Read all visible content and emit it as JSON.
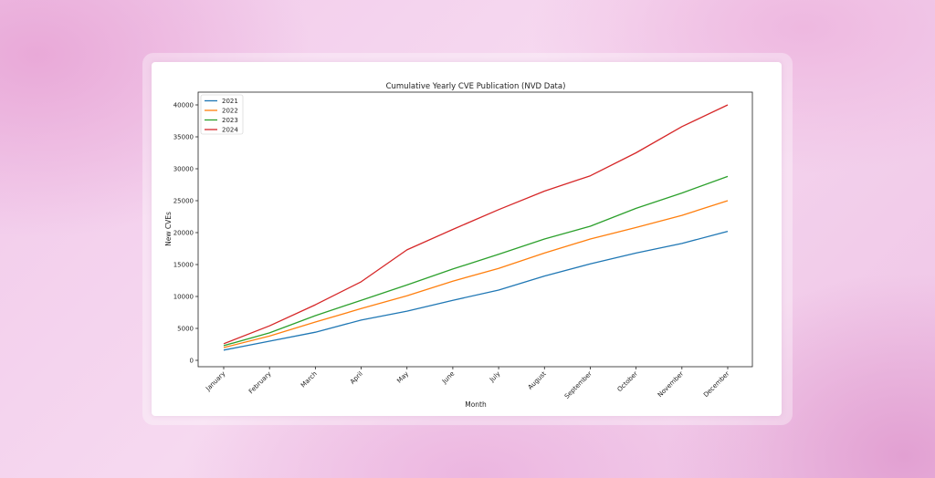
{
  "chart_data": {
    "type": "line",
    "title": "Cumulative Yearly CVE Publication (NVD Data)",
    "xlabel": "Month",
    "ylabel": "New CVEs",
    "categories": [
      "January",
      "February",
      "March",
      "April",
      "May",
      "June",
      "July",
      "August",
      "September",
      "October",
      "November",
      "December"
    ],
    "yticks": [
      0,
      5000,
      10000,
      15000,
      20000,
      25000,
      30000,
      35000,
      40000
    ],
    "ytick_labels": [
      "0",
      "5000",
      "10000",
      "15000",
      "20000",
      "25000",
      "30000",
      "35000",
      "40000"
    ],
    "ylim": [
      -1000,
      42000
    ],
    "legend_position": "upper-left",
    "grid": false,
    "series": [
      {
        "name": "2021",
        "color": "#1f77b4",
        "values": [
          1600,
          3000,
          4400,
          6300,
          7700,
          9400,
          11000,
          13200,
          15100,
          16800,
          18300,
          20200
        ]
      },
      {
        "name": "2022",
        "color": "#ff7f0e",
        "values": [
          2000,
          3800,
          6000,
          8100,
          10100,
          12400,
          14400,
          16800,
          19000,
          20800,
          22700,
          25000
        ]
      },
      {
        "name": "2023",
        "color": "#2ca02c",
        "values": [
          2300,
          4300,
          7000,
          9400,
          11800,
          14300,
          16600,
          19000,
          21000,
          23800,
          26200,
          28800
        ]
      },
      {
        "name": "2024",
        "color": "#d62728",
        "values": [
          2600,
          5400,
          8700,
          12300,
          17300,
          20500,
          23600,
          26500,
          28900,
          32500,
          36600,
          40000
        ]
      }
    ]
  }
}
